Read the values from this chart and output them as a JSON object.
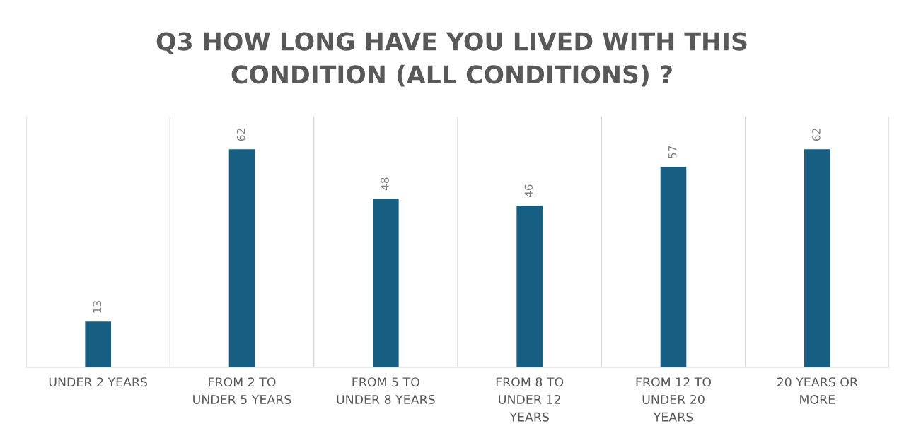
{
  "chart_data": {
    "type": "bar",
    "title": "Q3 HOW LONG HAVE YOU LIVED WITH THIS\nCONDITION (ALL CONDITIONS) ?",
    "categories": [
      "UNDER 2 YEARS",
      "FROM 2 TO\nUNDER 5 YEARS",
      "FROM 5 TO\nUNDER 8 YEARS",
      "FROM 8 TO\nUNDER 12\nYEARS",
      "FROM 12 TO\nUNDER 20\nYEARS",
      "20 YEARS OR\nMORE"
    ],
    "values": [
      13,
      62,
      48,
      46,
      57,
      62
    ],
    "color": "#175e83",
    "data_labels": true,
    "grid": "x"
  }
}
